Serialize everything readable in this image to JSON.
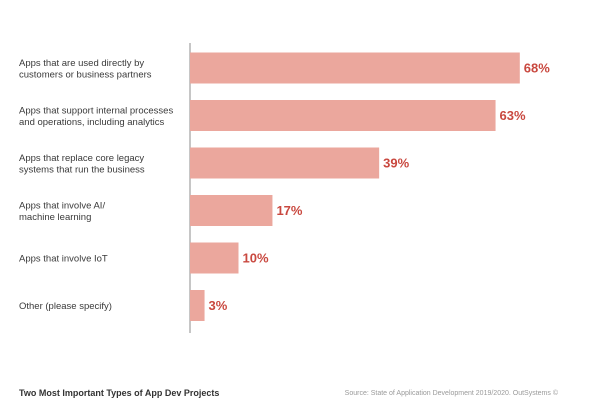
{
  "chart_data": {
    "type": "bar",
    "orientation": "horizontal",
    "categories": [
      "Apps that are used directly by\ncustomers or business partners",
      "Apps that support internal processes\nand operations, including analytics",
      "Apps that replace core legacy\nsystems that run the business",
      "Apps that involve AI/\nmachine learning",
      "Apps that involve IoT",
      "Other (please specify)"
    ],
    "values": [
      68,
      63,
      39,
      17,
      10,
      3
    ],
    "value_labels": [
      "68%",
      "63%",
      "39%",
      "17%",
      "10%",
      "3%"
    ],
    "xlim": [
      0,
      100
    ],
    "grid": false,
    "legend": "none"
  },
  "colors": {
    "bar": "#eba79d",
    "value_label": "#c9483f",
    "axis": "#8c8c8c"
  },
  "footer": {
    "title": "Two Most Important Types of App Dev Projects",
    "source": "Source: State of Application Development 2019/2020. OutSystems ©"
  }
}
